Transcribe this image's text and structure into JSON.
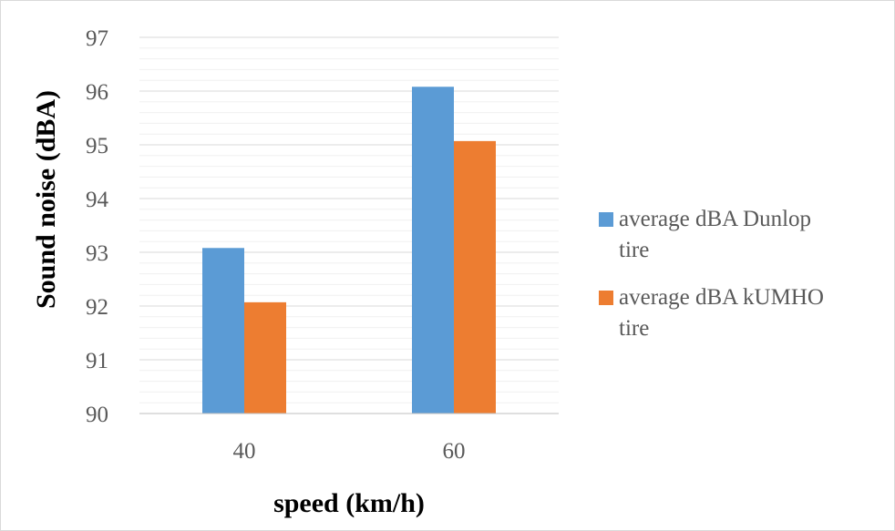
{
  "chart_data": {
    "type": "bar",
    "categories": [
      "40",
      "60"
    ],
    "series": [
      {
        "name_lines": [
          "average dBA Dunlop",
          "tire"
        ],
        "color": "#5b9bd5",
        "values": [
          93.08,
          96.08
        ]
      },
      {
        "name_lines": [
          "average dBA kUMHO",
          "tire"
        ],
        "color": "#ed7d31",
        "values": [
          92.07,
          95.07
        ]
      }
    ],
    "xlabel": "speed (km/h)",
    "ylabel": "Sound noise (dBA)",
    "ylim": [
      90,
      97
    ],
    "yticks": [
      "90",
      "91",
      "92",
      "93",
      "94",
      "95",
      "96",
      "97"
    ],
    "major_step": 1,
    "minor_step": 0.2,
    "grid": true,
    "legend_position": "right",
    "grid_major_color": "#d9d9d9",
    "grid_minor_color": "#f0f0f0",
    "axis_color": "#bfbfbf"
  }
}
